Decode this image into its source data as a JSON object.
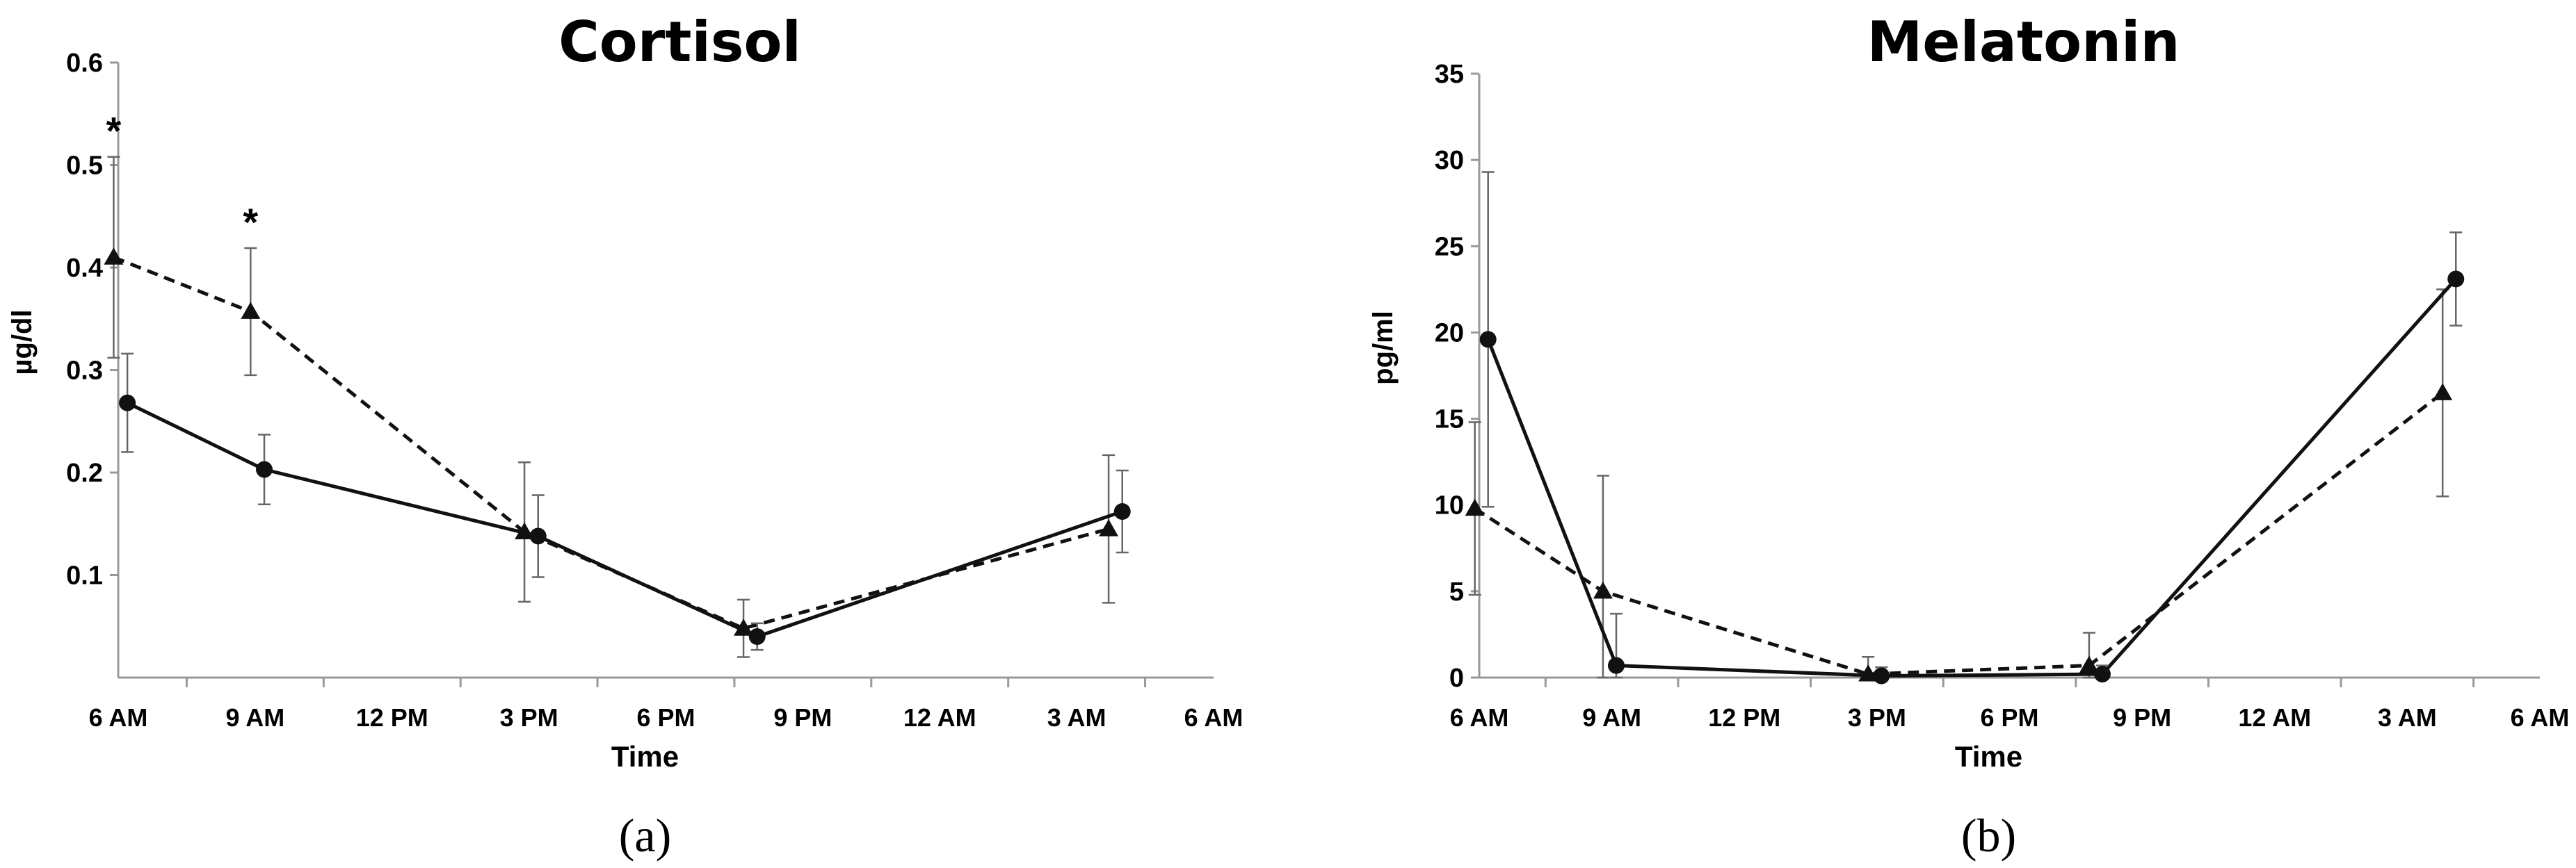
{
  "chart_data": [
    {
      "type": "line",
      "title": "Cortisol",
      "caption": "(a)",
      "xlabel": "Time",
      "ylabel": "µg/dl",
      "xlim": [
        6,
        30
      ],
      "ylim": [
        0,
        0.6
      ],
      "x_ticks": [
        {
          "value": 6,
          "label": "6 AM"
        },
        {
          "value": 9,
          "label": "9 AM"
        },
        {
          "value": 12,
          "label": "12 PM"
        },
        {
          "value": 15,
          "label": "3 PM"
        },
        {
          "value": 18,
          "label": "6 PM"
        },
        {
          "value": 21,
          "label": "9 PM"
        },
        {
          "value": 24,
          "label": "12 AM"
        },
        {
          "value": 27,
          "label": "3 AM"
        },
        {
          "value": 30,
          "label": "6 AM"
        }
      ],
      "y_ticks": [
        {
          "value": 0.1,
          "label": "0.1"
        },
        {
          "value": 0.2,
          "label": "0.2"
        },
        {
          "value": 0.3,
          "label": "0.3"
        },
        {
          "value": 0.4,
          "label": "0.4"
        },
        {
          "value": 0.5,
          "label": "0.5"
        },
        {
          "value": 0.6,
          "label": "0.6"
        }
      ],
      "grid": false,
      "series": [
        {
          "style": "dashed",
          "marker": "triangle",
          "points": [
            {
              "x": 5.9,
              "y": 0.41,
              "err": 0.098,
              "label": "*"
            },
            {
              "x": 8.9,
              "y": 0.357,
              "err": 0.062,
              "label": "*"
            },
            {
              "x": 14.9,
              "y": 0.142,
              "err": 0.068,
              "label": ""
            },
            {
              "x": 19.7,
              "y": 0.048,
              "err": 0.028,
              "label": ""
            },
            {
              "x": 27.7,
              "y": 0.145,
              "err": 0.072,
              "label": ""
            }
          ]
        },
        {
          "style": "solid",
          "marker": "circle",
          "points": [
            {
              "x": 6.2,
              "y": 0.268,
              "err": 0.048,
              "label": ""
            },
            {
              "x": 9.2,
              "y": 0.203,
              "err": 0.034,
              "label": ""
            },
            {
              "x": 15.2,
              "y": 0.138,
              "err": 0.04,
              "label": ""
            },
            {
              "x": 20.0,
              "y": 0.04,
              "err": 0.013,
              "label": ""
            },
            {
              "x": 28.0,
              "y": 0.162,
              "err": 0.04,
              "label": ""
            }
          ]
        }
      ]
    },
    {
      "type": "line",
      "title": "Melatonin",
      "caption": "(b)",
      "xlabel": "Time",
      "ylabel": "pg/ml",
      "xlim": [
        6,
        30
      ],
      "ylim": [
        0,
        35
      ],
      "x_ticks": [
        {
          "value": 6,
          "label": "6 AM"
        },
        {
          "value": 9,
          "label": "9 AM"
        },
        {
          "value": 12,
          "label": "12 PM"
        },
        {
          "value": 15,
          "label": "3 PM"
        },
        {
          "value": 18,
          "label": "6 PM"
        },
        {
          "value": 21,
          "label": "9 PM"
        },
        {
          "value": 24,
          "label": "12 AM"
        },
        {
          "value": 27,
          "label": "3 AM"
        },
        {
          "value": 30,
          "label": "6 AM"
        }
      ],
      "y_ticks": [
        {
          "value": 0,
          "label": "0"
        },
        {
          "value": 5,
          "label": "5"
        },
        {
          "value": 10,
          "label": "10"
        },
        {
          "value": 15,
          "label": "15"
        },
        {
          "value": 20,
          "label": "20"
        },
        {
          "value": 25,
          "label": "25"
        },
        {
          "value": 30,
          "label": "30"
        },
        {
          "value": 35,
          "label": "35"
        }
      ],
      "grid": false,
      "series": [
        {
          "style": "dashed",
          "marker": "triangle",
          "points": [
            {
              "x": 5.9,
              "y": 9.8,
              "err": 5.0
            },
            {
              "x": 8.8,
              "y": 5.0,
              "err": 6.7
            },
            {
              "x": 14.8,
              "y": 0.2,
              "err": 1.0
            },
            {
              "x": 19.8,
              "y": 0.7,
              "err": 1.9
            },
            {
              "x": 27.8,
              "y": 16.5,
              "err": 6.0
            }
          ]
        },
        {
          "style": "solid",
          "marker": "circle",
          "points": [
            {
              "x": 6.2,
              "y": 19.6,
              "err": 9.7
            },
            {
              "x": 9.1,
              "y": 0.7,
              "err": 3.0
            },
            {
              "x": 15.1,
              "y": 0.1,
              "err": 0.5
            },
            {
              "x": 20.1,
              "y": 0.2,
              "err": 0.5
            },
            {
              "x": 28.1,
              "y": 23.1,
              "err": 2.7
            }
          ]
        }
      ]
    }
  ]
}
